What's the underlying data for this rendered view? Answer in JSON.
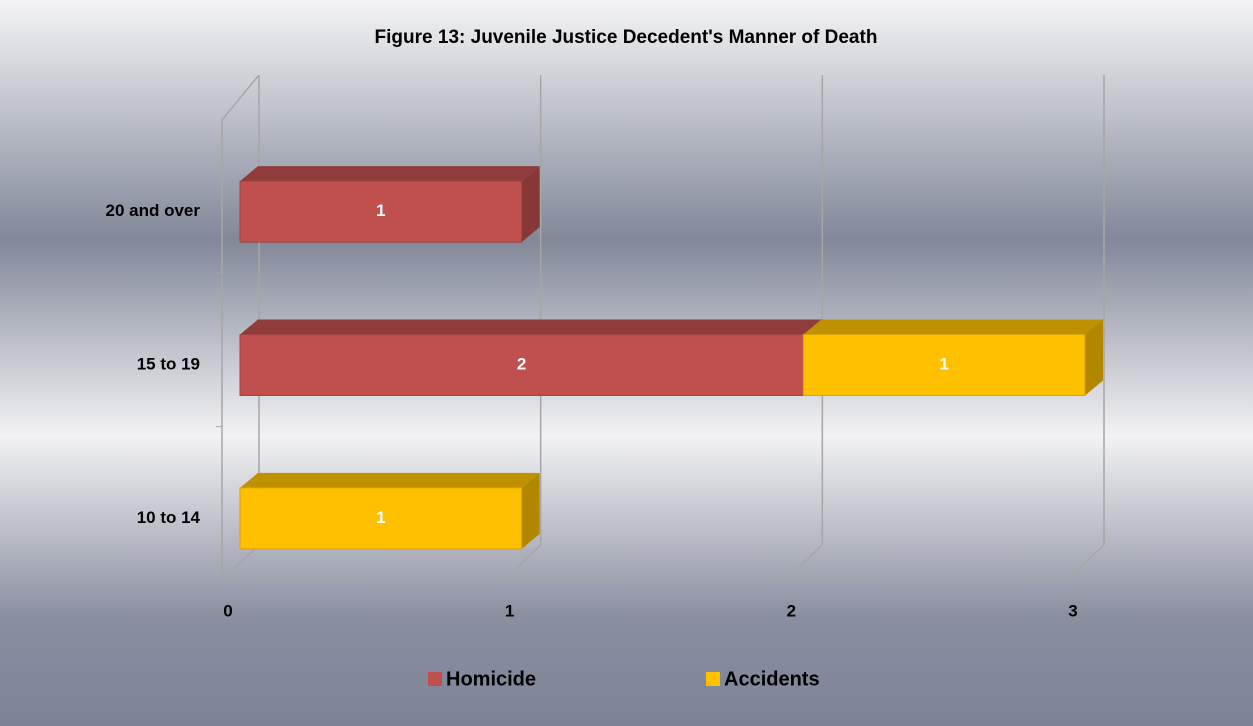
{
  "chart_data": {
    "type": "bar",
    "orientation": "horizontal",
    "stacked": true,
    "three_d": true,
    "title": "Figure 13:  Juvenile Justice Decedent's Manner of Death",
    "categories": [
      "10 to 14",
      "15 to 19",
      "20 and over"
    ],
    "series": [
      {
        "name": "Homicide",
        "color": "#c0504d",
        "values": [
          null,
          2,
          1
        ]
      },
      {
        "name": "Accidents",
        "color": "#ffc000",
        "values": [
          1,
          1,
          null
        ]
      }
    ],
    "xlim": [
      0,
      3
    ],
    "xticks": [
      0,
      1,
      2,
      3
    ],
    "grid": true,
    "legend": "bottom"
  }
}
